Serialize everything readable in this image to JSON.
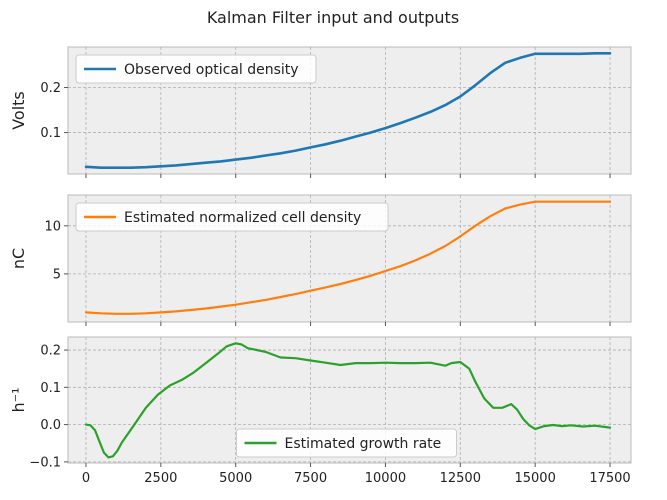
{
  "figure_title": "Kalman Filter input and outputs",
  "chart_data": [
    {
      "type": "line",
      "ylabel": "Volts",
      "xlim": [
        -600,
        18200
      ],
      "ylim": [
        0.008,
        0.29
      ],
      "yticks": [
        0.1,
        0.2
      ],
      "ytick_labels": [
        "0.1",
        "0.2"
      ],
      "xticks": [
        0,
        2500,
        5000,
        7500,
        10000,
        12500,
        15000,
        17500
      ],
      "show_xtick_labels": false,
      "legend_location": "upper-left",
      "grid": true,
      "series": [
        {
          "name": "Observed optical density",
          "color": "#1f77b4",
          "x": [
            0,
            500,
            1000,
            1500,
            2000,
            2500,
            3000,
            3500,
            4000,
            4500,
            5000,
            5500,
            6000,
            6500,
            7000,
            7500,
            8000,
            8500,
            9000,
            9500,
            10000,
            10500,
            11000,
            11500,
            12000,
            12500,
            13000,
            13500,
            14000,
            14500,
            15000,
            15500,
            16000,
            16500,
            17000,
            17500
          ],
          "y": [
            0.024,
            0.022,
            0.022,
            0.022,
            0.023,
            0.025,
            0.027,
            0.03,
            0.033,
            0.036,
            0.04,
            0.044,
            0.049,
            0.054,
            0.06,
            0.067,
            0.074,
            0.082,
            0.091,
            0.1,
            0.11,
            0.121,
            0.133,
            0.146,
            0.161,
            0.18,
            0.205,
            0.232,
            0.255,
            0.266,
            0.275,
            0.275,
            0.275,
            0.275,
            0.276,
            0.276
          ]
        }
      ]
    },
    {
      "type": "line",
      "ylabel": "nC",
      "xlim": [
        -600,
        18200
      ],
      "ylim": [
        0,
        13.2
      ],
      "yticks": [
        5,
        10
      ],
      "ytick_labels": [
        "5",
        "10"
      ],
      "xticks": [
        0,
        2500,
        5000,
        7500,
        10000,
        12500,
        15000,
        17500
      ],
      "show_xtick_labels": false,
      "legend_location": "upper-left",
      "grid": true,
      "series": [
        {
          "name": "Estimated normalized cell density",
          "color": "#ff7f0e",
          "x": [
            0,
            500,
            1000,
            1500,
            2000,
            2500,
            3000,
            3500,
            4000,
            4500,
            5000,
            5500,
            6000,
            6500,
            7000,
            7500,
            8000,
            8500,
            9000,
            9500,
            10000,
            10500,
            11000,
            11500,
            12000,
            12500,
            13000,
            13500,
            14000,
            14500,
            15000,
            15500,
            16000,
            16500,
            17000,
            17500
          ],
          "y": [
            1.0,
            0.9,
            0.85,
            0.85,
            0.9,
            1.0,
            1.1,
            1.25,
            1.4,
            1.6,
            1.8,
            2.05,
            2.3,
            2.6,
            2.9,
            3.25,
            3.6,
            3.95,
            4.35,
            4.8,
            5.3,
            5.8,
            6.4,
            7.1,
            7.9,
            8.9,
            10.0,
            11.0,
            11.8,
            12.2,
            12.5,
            12.5,
            12.5,
            12.5,
            12.5,
            12.5
          ]
        }
      ]
    },
    {
      "type": "line",
      "ylabel": "h⁻¹",
      "xlim": [
        -600,
        18200
      ],
      "ylim": [
        -0.103,
        0.235
      ],
      "yticks": [
        -0.1,
        0.0,
        0.1,
        0.2
      ],
      "ytick_labels": [
        "−0.1",
        "0.0",
        "0.1",
        "0.2"
      ],
      "xticks": [
        0,
        2500,
        5000,
        7500,
        10000,
        12500,
        15000,
        17500
      ],
      "xtick_labels": [
        "0",
        "2500",
        "5000",
        "7500",
        "10000",
        "12500",
        "15000",
        "17500"
      ],
      "show_xtick_labels": true,
      "legend_location": "lower-center",
      "grid": true,
      "series": [
        {
          "name": "Estimated growth rate",
          "color": "#2ca02c",
          "x": [
            0,
            150,
            300,
            450,
            600,
            750,
            900,
            1050,
            1200,
            1400,
            1700,
            2000,
            2400,
            2800,
            3200,
            3600,
            4000,
            4400,
            4700,
            5000,
            5200,
            5400,
            5700,
            6000,
            6500,
            7000,
            7500,
            8000,
            8500,
            9000,
            9500,
            10000,
            10500,
            11000,
            11500,
            12000,
            12200,
            12500,
            12800,
            13000,
            13300,
            13600,
            13900,
            14200,
            14400,
            14600,
            14800,
            15000,
            15300,
            15600,
            15900,
            16200,
            16600,
            17000,
            17500
          ],
          "y": [
            0.0,
            -0.002,
            -0.015,
            -0.045,
            -0.075,
            -0.088,
            -0.085,
            -0.07,
            -0.048,
            -0.025,
            0.01,
            0.045,
            0.08,
            0.105,
            0.12,
            0.14,
            0.165,
            0.19,
            0.21,
            0.218,
            0.215,
            0.205,
            0.2,
            0.195,
            0.18,
            0.178,
            0.172,
            0.166,
            0.16,
            0.165,
            0.165,
            0.166,
            0.165,
            0.165,
            0.166,
            0.158,
            0.165,
            0.168,
            0.15,
            0.115,
            0.07,
            0.045,
            0.045,
            0.055,
            0.04,
            0.015,
            -0.002,
            -0.012,
            -0.004,
            -0.001,
            -0.004,
            -0.002,
            -0.005,
            -0.003,
            -0.008
          ]
        }
      ]
    }
  ]
}
